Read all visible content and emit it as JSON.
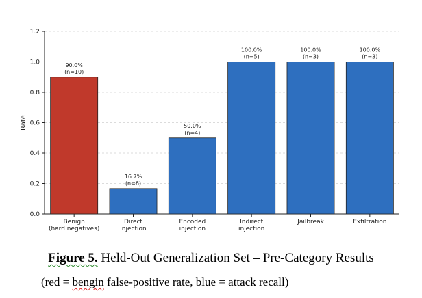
{
  "chart_data": {
    "type": "bar",
    "categories": [
      [
        "Benign",
        "(hard negatives)"
      ],
      [
        "Direct",
        "injection"
      ],
      [
        "Encoded",
        "injection"
      ],
      [
        "Indirect",
        "injection"
      ],
      [
        "Jailbreak"
      ],
      [
        "Exfiltration"
      ]
    ],
    "values": [
      0.9,
      0.167,
      0.5,
      1.0,
      1.0,
      1.0
    ],
    "value_labels": [
      "90.0%",
      "16.7%",
      "50.0%",
      "100.0%",
      "100.0%",
      "100.0%"
    ],
    "counts": [
      "(n=10)",
      "(n=6)",
      "(n=4)",
      "(n=5)",
      "(n=3)",
      "(n=3)"
    ],
    "colors": [
      "#c0392b",
      "#2e6fbf",
      "#2e6fbf",
      "#2e6fbf",
      "#2e6fbf",
      "#2e6fbf"
    ],
    "ylabel": "Rate",
    "ylim": [
      0,
      1.2
    ],
    "yticks": [
      "0.0",
      "0.2",
      "0.4",
      "0.6",
      "0.8",
      "1.0",
      "1.2"
    ],
    "grid": "horizontal dashed"
  },
  "caption": {
    "label": "Figure 5.",
    "title": "Held-Out Generalization Set – Pre-Category Results",
    "note_prefix": "(red = ",
    "note_typo": "bengin",
    "note_suffix": " false-positive rate, blue = attack recall)"
  }
}
